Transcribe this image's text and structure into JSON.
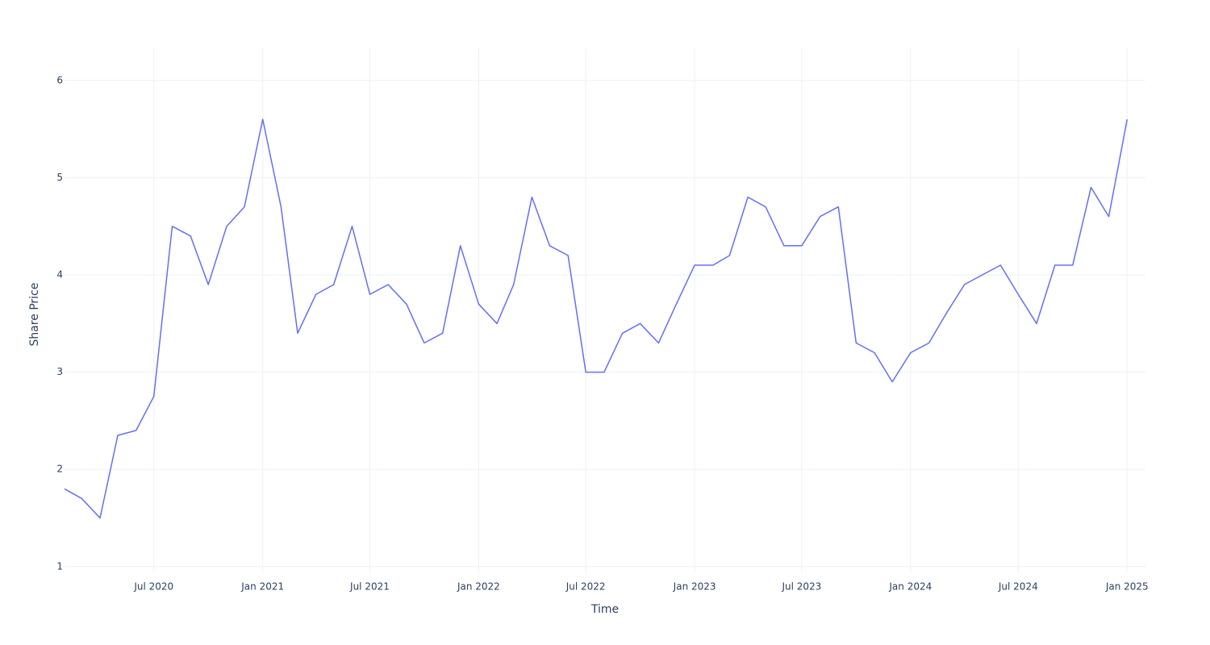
{
  "chart_data": {
    "type": "line",
    "x_label": "Time",
    "y_label": "Share Price",
    "x": [
      "2020-02",
      "2020-03",
      "2020-04",
      "2020-05",
      "2020-06",
      "2020-07",
      "2020-08",
      "2020-09",
      "2020-10",
      "2020-11",
      "2020-12",
      "2021-01",
      "2021-02",
      "2021-03",
      "2021-04",
      "2021-05",
      "2021-06",
      "2021-07",
      "2021-08",
      "2021-09",
      "2021-10",
      "2021-11",
      "2021-12",
      "2022-01",
      "2022-02",
      "2022-03",
      "2022-04",
      "2022-05",
      "2022-06",
      "2022-07",
      "2022-08",
      "2022-09",
      "2022-10",
      "2022-11",
      "2022-12",
      "2023-01",
      "2023-02",
      "2023-03",
      "2023-04",
      "2023-05",
      "2023-06",
      "2023-07",
      "2023-08",
      "2023-09",
      "2023-10",
      "2023-11",
      "2023-12",
      "2024-01",
      "2024-02",
      "2024-03",
      "2024-04",
      "2024-05",
      "2024-06",
      "2024-07",
      "2024-08",
      "2024-09",
      "2024-10",
      "2024-11",
      "2024-12",
      "2025-01"
    ],
    "series": [
      {
        "name": "Share Price",
        "color": "#636efa",
        "values": [
          1.8,
          1.7,
          1.5,
          2.35,
          2.4,
          2.75,
          4.5,
          4.4,
          3.9,
          4.5,
          4.7,
          5.6,
          4.7,
          3.4,
          3.8,
          3.9,
          4.5,
          3.8,
          3.9,
          3.7,
          3.3,
          3.4,
          4.3,
          3.7,
          3.5,
          3.9,
          4.8,
          4.3,
          4.2,
          3.0,
          3.0,
          3.4,
          3.5,
          3.3,
          3.7,
          4.1,
          4.1,
          4.2,
          4.8,
          4.7,
          4.3,
          4.3,
          4.6,
          4.7,
          3.3,
          3.2,
          2.9,
          3.2,
          3.3,
          3.6,
          3.9,
          4.0,
          4.1,
          3.8,
          3.5,
          4.1,
          4.1,
          4.9,
          4.6,
          5.6
        ]
      }
    ],
    "xlim": [
      "2020-02",
      "2025-02"
    ],
    "ylim": [
      0.94,
      6.33
    ],
    "xticks": [
      {
        "value": "2020-07",
        "label": "Jul 2020"
      },
      {
        "value": "2021-01",
        "label": "Jan 2021"
      },
      {
        "value": "2021-07",
        "label": "Jul 2021"
      },
      {
        "value": "2022-01",
        "label": "Jan 2022"
      },
      {
        "value": "2022-07",
        "label": "Jul 2022"
      },
      {
        "value": "2023-01",
        "label": "Jan 2023"
      },
      {
        "value": "2023-07",
        "label": "Jul 2023"
      },
      {
        "value": "2024-01",
        "label": "Jan 2024"
      },
      {
        "value": "2024-07",
        "label": "Jul 2024"
      },
      {
        "value": "2025-01",
        "label": "Jan 2025"
      }
    ],
    "yticks": [
      1,
      2,
      3,
      4,
      5,
      6
    ],
    "grid": true
  }
}
